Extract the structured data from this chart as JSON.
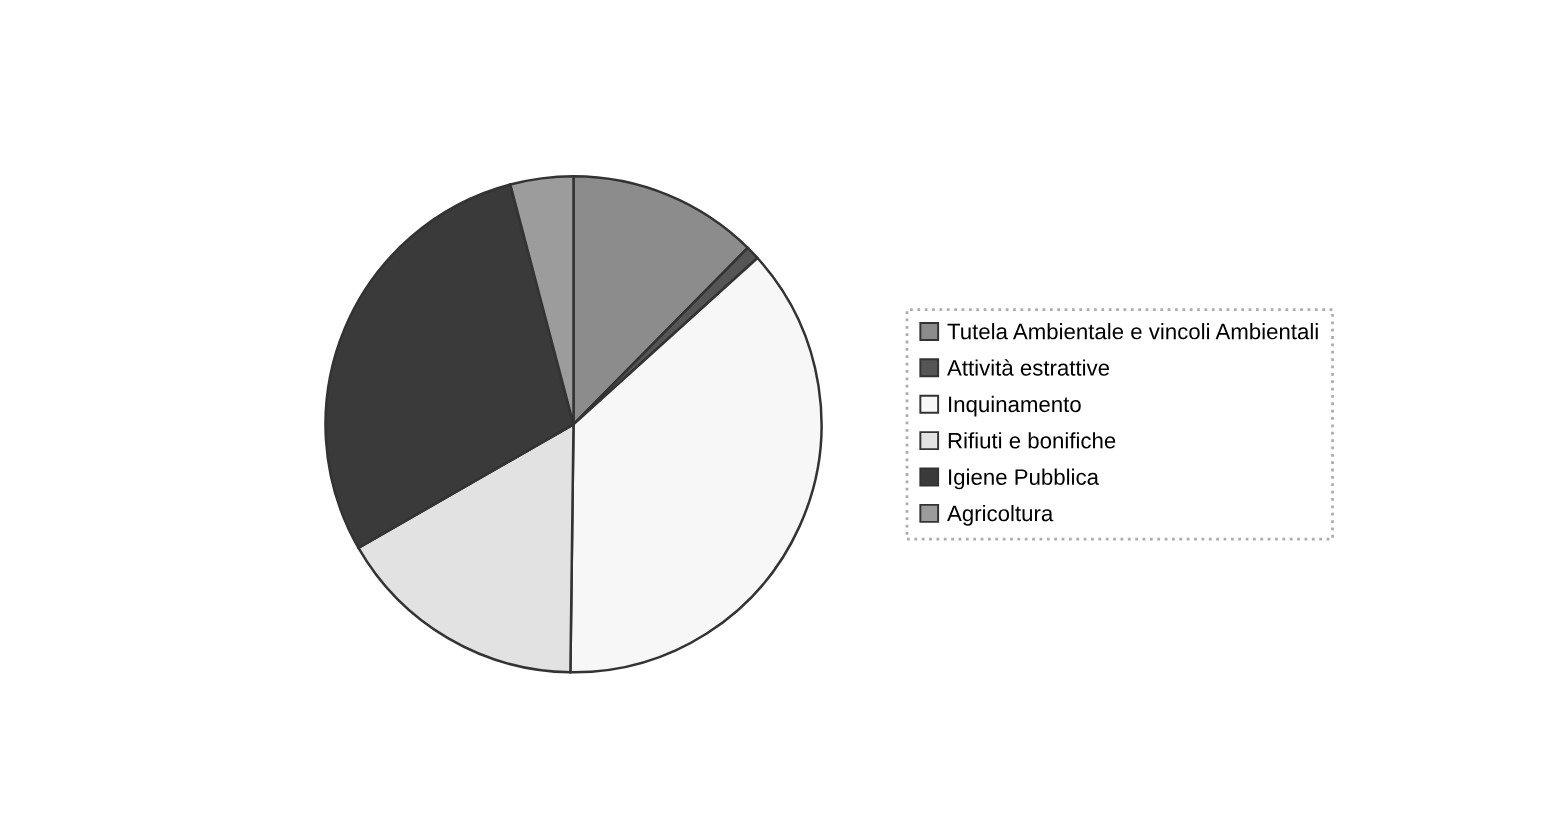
{
  "chart_data": {
    "type": "pie",
    "categories": [
      "Tutela Ambientale e vincoli Ambientali",
      "Attività estrattive",
      "Inquinamento",
      "Rifiuti e bonifiche",
      "Igiene Pubblica",
      "Agricoltura"
    ],
    "values": [
      12.4,
      0.9,
      36.9,
      16.5,
      29.2,
      4.1
    ],
    "colors": [
      "#8c8c8c",
      "#555555",
      "#f7f7f7",
      "#e2e2e2",
      "#3a3a3a",
      "#9c9c9c"
    ],
    "legend": "right"
  }
}
